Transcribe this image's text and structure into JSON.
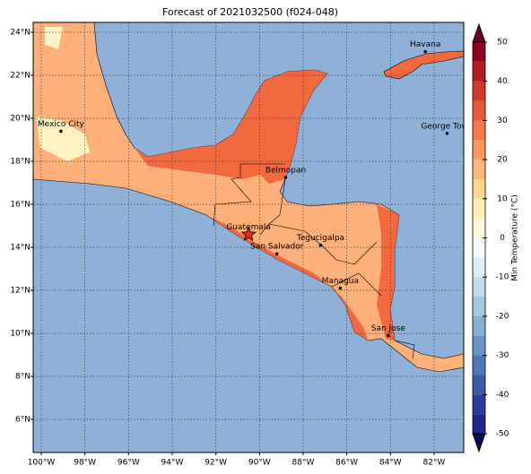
{
  "title": "Forecast of 2021032500 (f024-048)",
  "map": {
    "lon_range": [
      -100.37,
      -80.64
    ],
    "lat_range": [
      4.46,
      24.46
    ],
    "lon_ticks": [
      {
        "value": -100,
        "label": "100°W"
      },
      {
        "value": -98,
        "label": "98°W"
      },
      {
        "value": -96,
        "label": "96°W"
      },
      {
        "value": -94,
        "label": "94°W"
      },
      {
        "value": -92,
        "label": "92°W"
      },
      {
        "value": -90,
        "label": "90°W"
      },
      {
        "value": -88,
        "label": "88°W"
      },
      {
        "value": -86,
        "label": "86°W"
      },
      {
        "value": -84,
        "label": "84°W"
      },
      {
        "value": -82,
        "label": "82°W"
      }
    ],
    "lat_ticks": [
      {
        "value": 6,
        "label": "6°N"
      },
      {
        "value": 8,
        "label": "8°N"
      },
      {
        "value": 10,
        "label": "10°N"
      },
      {
        "value": 12,
        "label": "12°N"
      },
      {
        "value": 14,
        "label": "14°N"
      },
      {
        "value": 16,
        "label": "16°N"
      },
      {
        "value": 18,
        "label": "18°N"
      },
      {
        "value": 20,
        "label": "20°N"
      },
      {
        "value": 22,
        "label": "22°N"
      },
      {
        "value": 24,
        "label": "24°N"
      }
    ],
    "cities": [
      {
        "name": "Mexico City",
        "lon": -99.1,
        "lat": 19.4
      },
      {
        "name": "Havana",
        "lon": -82.4,
        "lat": 23.1
      },
      {
        "name": "George Town",
        "lon": -81.4,
        "lat": 19.3
      },
      {
        "name": "Belmopan",
        "lon": -88.8,
        "lat": 17.25
      },
      {
        "name": "Guatemala",
        "lon": -90.5,
        "lat": 14.6
      },
      {
        "name": "San Salvador",
        "lon": -89.2,
        "lat": 13.7
      },
      {
        "name": "Tegucigalpa",
        "lon": -87.2,
        "lat": 14.1
      },
      {
        "name": "Managua",
        "lon": -86.3,
        "lat": 12.1
      },
      {
        "name": "San Jose",
        "lon": -84.1,
        "lat": 9.9
      }
    ]
  },
  "colorbar": {
    "label": "Min Temperature (°C)",
    "ticks": [
      -50,
      -40,
      -30,
      -20,
      -10,
      0,
      10,
      20,
      30,
      40,
      50
    ],
    "bounds": [
      -50,
      -45,
      -40,
      -35,
      -30,
      -25,
      -20,
      -15,
      -10,
      -5,
      0,
      5,
      10,
      15,
      20,
      25,
      30,
      35,
      40,
      45,
      50
    ],
    "colors": [
      "#23238e",
      "#2b3a9b",
      "#3a5aa8",
      "#4d78b8",
      "#6796c6",
      "#86b0d3",
      "#a5c8e0",
      "#c3dceb",
      "#dfeef5",
      "#f7fbfd",
      "#fff8d8",
      "#ffeeb3",
      "#fed690",
      "#fdb77a",
      "#fc9860",
      "#f67a49",
      "#e55b3a",
      "#d13a2d",
      "#b41d26",
      "#900020"
    ]
  }
}
